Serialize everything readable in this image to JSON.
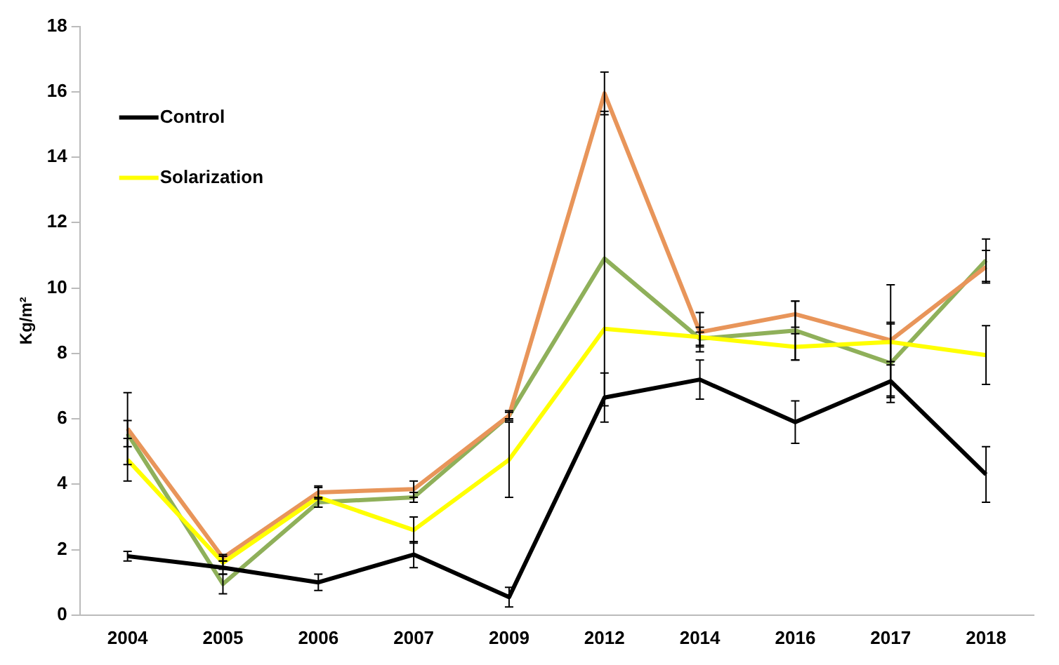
{
  "chart_data": {
    "type": "line",
    "ylabel": "Kg/m²",
    "categories": [
      "2004",
      "2005",
      "2006",
      "2007",
      "2009",
      "2012",
      "2014",
      "2016",
      "2017",
      "2018"
    ],
    "series": [
      {
        "name": "Control",
        "color": "#000000",
        "values": [
          1.8,
          1.45,
          1.0,
          1.85,
          0.55,
          6.65,
          7.2,
          5.9,
          7.15,
          4.3
        ],
        "errors": [
          0.15,
          0.2,
          0.25,
          0.4,
          0.3,
          0.75,
          0.6,
          0.65,
          0.5,
          0.85
        ]
      },
      {
        "name": "Solarization",
        "color": "#ffff00",
        "values": [
          4.75,
          1.6,
          3.6,
          2.6,
          4.75,
          8.75,
          8.5,
          8.2,
          8.35,
          7.95
        ],
        "errors": [
          0.65,
          0.2,
          0.3,
          0.4,
          1.15,
          null,
          0.3,
          0.4,
          0.6,
          0.9
        ]
      },
      {
        "color": "#e8955a",
        "values": [
          5.7,
          1.75,
          3.75,
          3.85,
          6.1,
          15.95,
          8.65,
          9.2,
          8.4,
          10.65
        ],
        "errors": [
          1.1,
          0.1,
          0.2,
          0.25,
          0.15,
          0.65,
          0.6,
          0.4,
          1.7,
          0.5
        ]
      },
      {
        "color": "#8fb05a",
        "values": [
          5.55,
          0.95,
          3.45,
          3.6,
          6.1,
          10.9,
          8.45,
          8.7,
          7.7,
          10.85
        ],
        "errors": [
          0.4,
          0.3,
          0.15,
          0.15,
          0.1,
          4.5,
          0.2,
          0.9,
          1.2,
          0.65
        ]
      }
    ],
    "ylim": [
      0,
      18
    ],
    "yticks": [
      0,
      2,
      4,
      6,
      8,
      10,
      12,
      14,
      16,
      18
    ],
    "grid": false,
    "legend": "top left",
    "marker": "none",
    "line_style": "solid"
  }
}
